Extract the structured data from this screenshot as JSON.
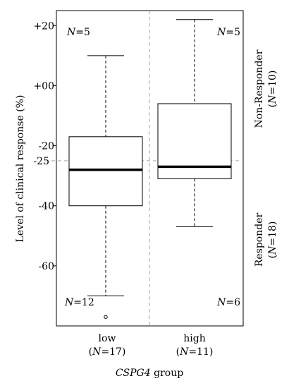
{
  "chart_data": {
    "type": "boxplot",
    "title": "",
    "xlabel": "CSPG4 group",
    "xlabel_italic_part": "CSPG4",
    "xlabel_rest": " group",
    "ylabel": "Level of clinical response (%)",
    "ylim": [
      -80,
      25
    ],
    "y_ticks": [
      20,
      0,
      -20,
      -40,
      -60
    ],
    "y_tick_labels": [
      "+20",
      "+00",
      "-20",
      "-40",
      "-60"
    ],
    "threshold": {
      "value": -25,
      "label": "-25"
    },
    "categories": [
      {
        "name": "low",
        "n_label": "(N=17)",
        "n": "17"
      },
      {
        "name": "high",
        "n_label": "(N=11)",
        "n": "11"
      }
    ],
    "boxes": [
      {
        "group": "low",
        "whisker_low": -70,
        "q1": -40,
        "median": -28,
        "q3": -17,
        "whisker_high": 10,
        "outliers": [
          -77
        ]
      },
      {
        "group": "high",
        "whisker_low": -47,
        "q1": -31,
        "median": -27,
        "q3": -6,
        "whisker_high": 22,
        "outliers": []
      }
    ],
    "quadrant_counts": {
      "low_above": "N=5",
      "high_above": "N=5",
      "low_below": "N=12",
      "high_below": "N=6"
    },
    "right_labels": {
      "top": {
        "line1": "Non-Responder",
        "line2": "(N=10)"
      },
      "bottom": {
        "line1": "Responder",
        "line2": "(N=18)"
      }
    },
    "grid": false,
    "colors": {
      "threshold": "#a6a6a6",
      "median": "#000000",
      "box": "#000000"
    }
  }
}
